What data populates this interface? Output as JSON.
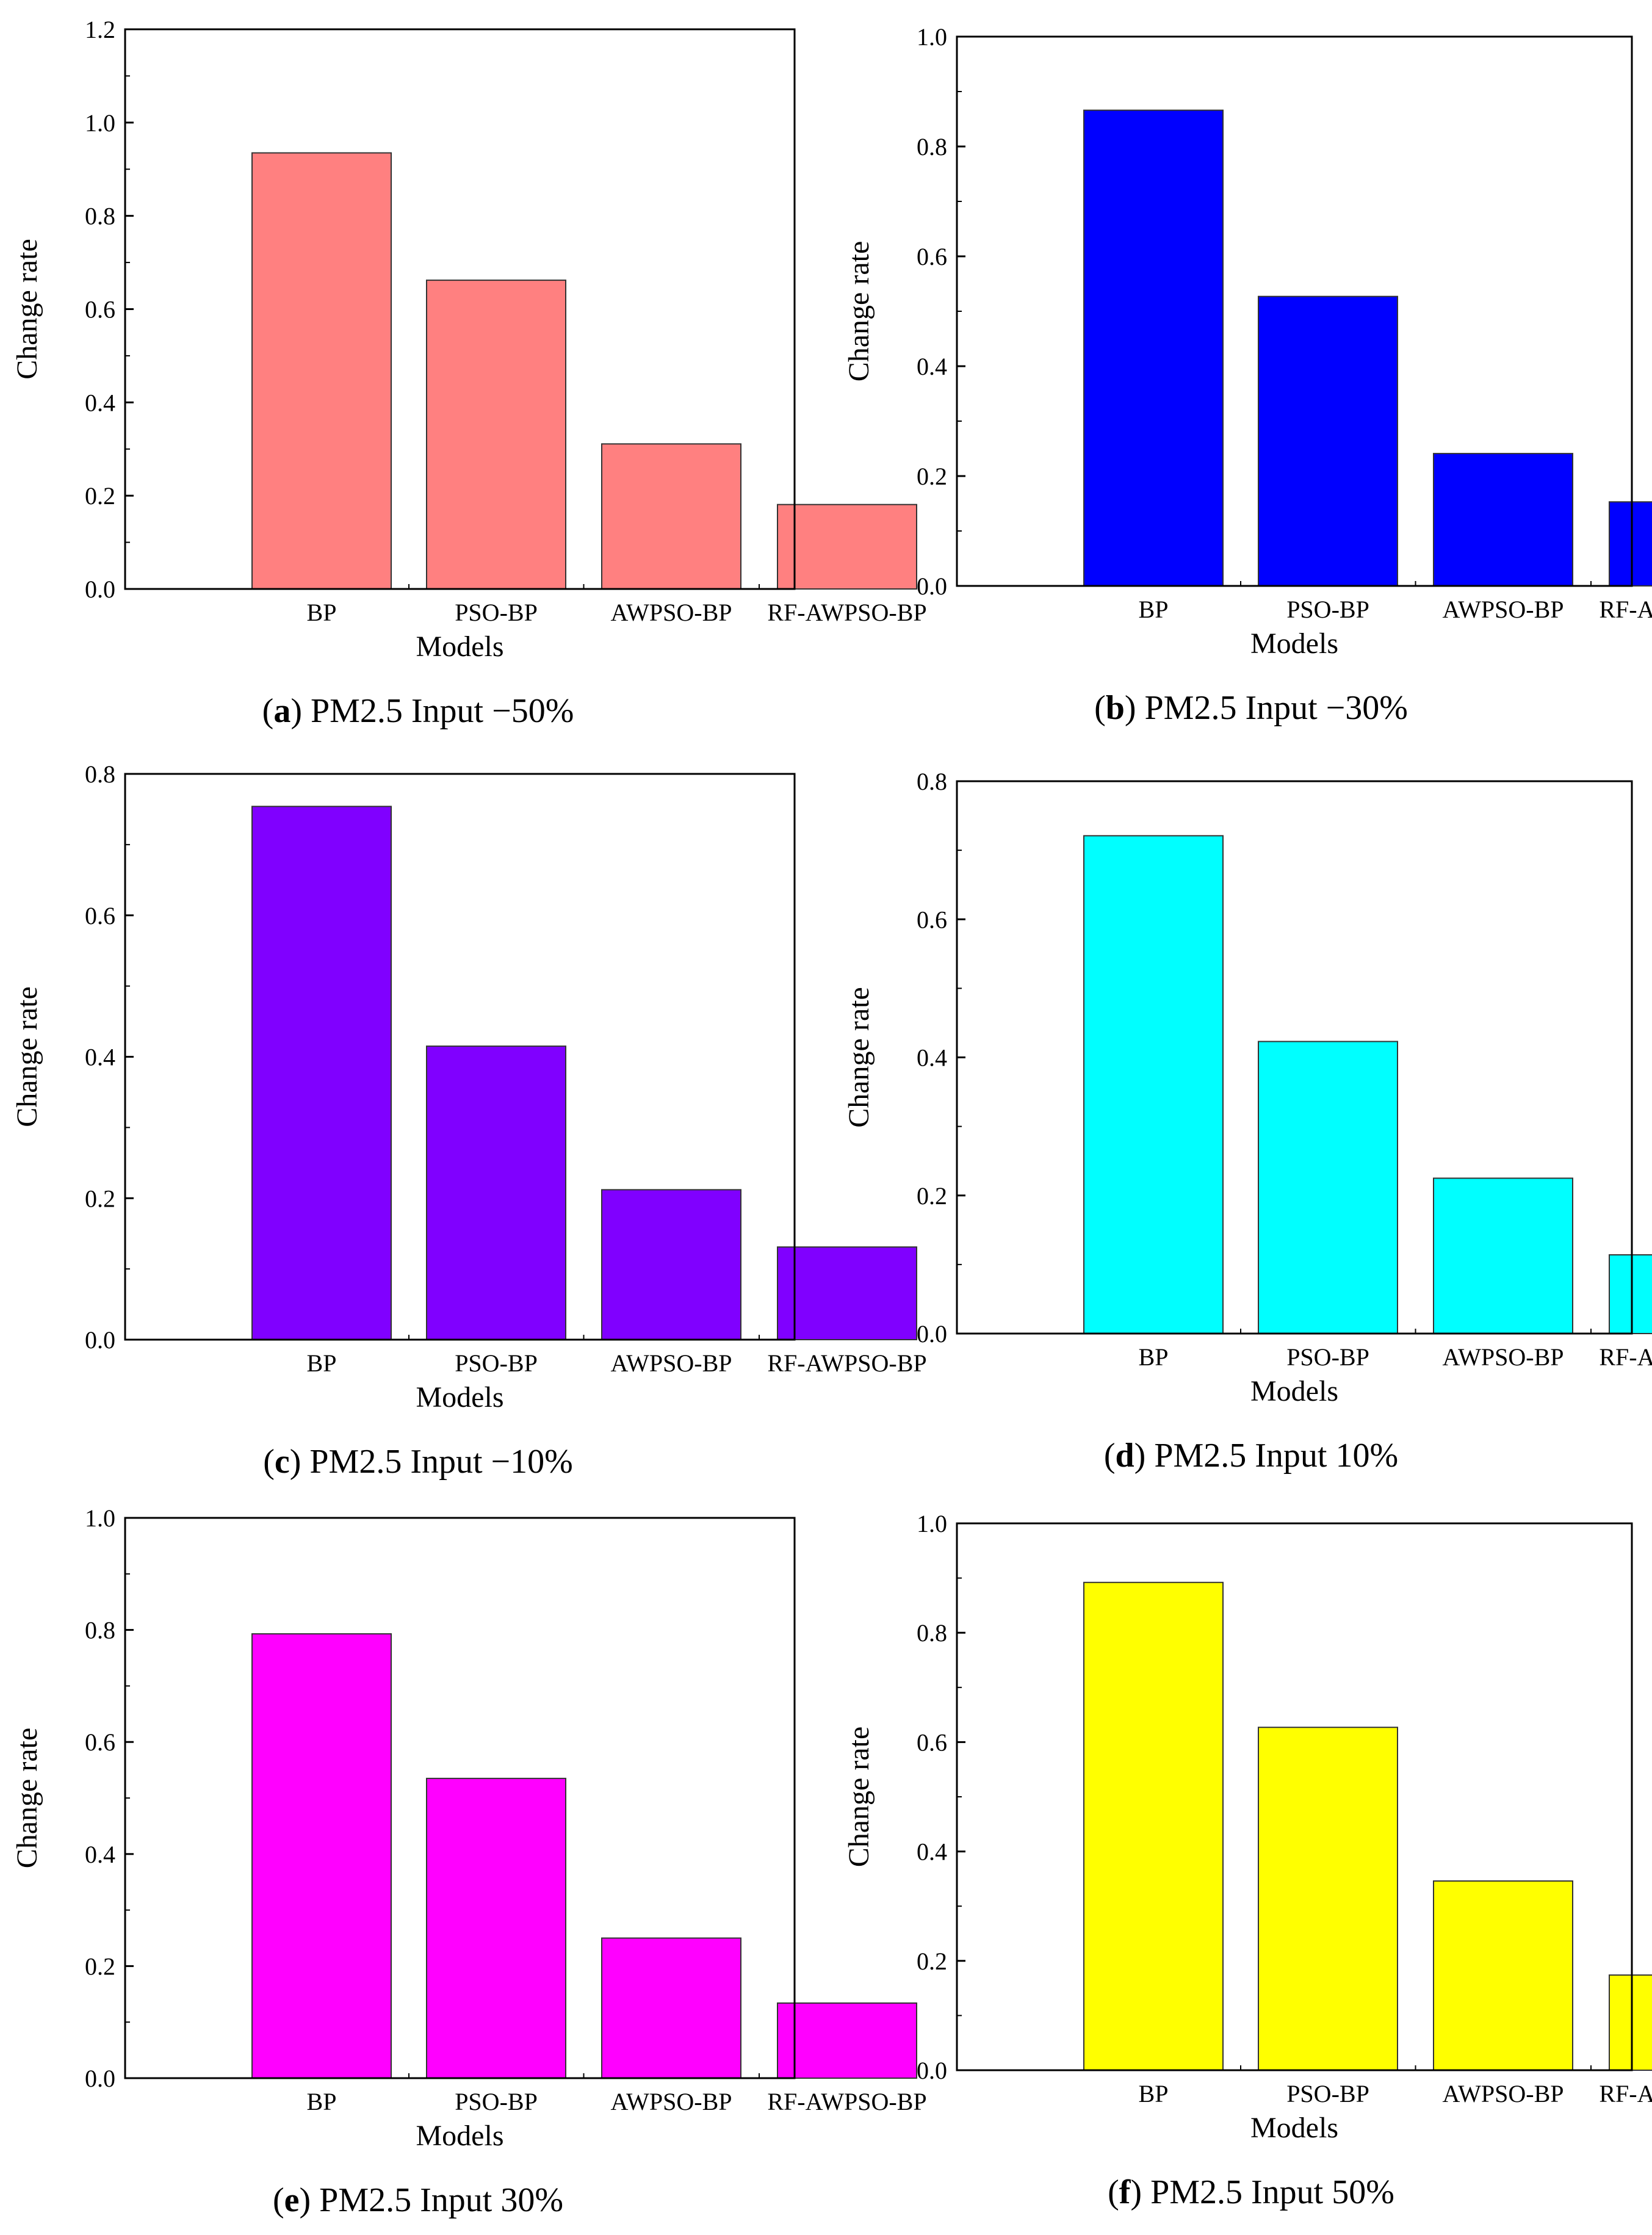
{
  "chart_data": [
    {
      "type": "bar",
      "panel": "a",
      "caption": {
        "letter": "a",
        "text": " PM2.5 Input −50%"
      },
      "categories": [
        "BP",
        "PSO-BP",
        "AWPSO-BP",
        "RF-AWPSO-BP"
      ],
      "values": [
        0.935,
        0.662,
        0.311,
        0.181
      ],
      "xlabel": "Models",
      "ylabel": "Change rate",
      "ylim": [
        0,
        1.2
      ],
      "yticks": [
        "0.0",
        "0.2",
        "0.4",
        "0.6",
        "0.8",
        "1.0",
        "1.2"
      ],
      "color": "#ff8080",
      "grid": false
    },
    {
      "type": "bar",
      "panel": "b",
      "caption": {
        "letter": "b",
        "text": " PM2.5 Input −30%"
      },
      "categories": [
        "BP",
        "PSO-BP",
        "AWPSO-BP",
        "RF-AWPSO-BP"
      ],
      "values": [
        0.866,
        0.527,
        0.241,
        0.153
      ],
      "xlabel": "Models",
      "ylabel": "Change rate",
      "ylim": [
        0,
        1.0
      ],
      "yticks": [
        "0.0",
        "0.2",
        "0.4",
        "0.6",
        "0.8",
        "1.0"
      ],
      "color": "#0000ff",
      "grid": false
    },
    {
      "type": "bar",
      "panel": "c",
      "caption": {
        "letter": "c",
        "text": " PM2.5 Input −10%"
      },
      "categories": [
        "BP",
        "PSO-BP",
        "AWPSO-BP",
        "RF-AWPSO-BP"
      ],
      "values": [
        0.754,
        0.415,
        0.212,
        0.131
      ],
      "xlabel": "Models",
      "ylabel": "Change rate",
      "ylim": [
        0,
        0.8
      ],
      "yticks": [
        "0.0",
        "0.2",
        "0.4",
        "0.6",
        "0.8"
      ],
      "color": "#8000ff",
      "grid": false
    },
    {
      "type": "bar",
      "panel": "d",
      "caption": {
        "letter": "d",
        "text": " PM2.5 Input 10%"
      },
      "categories": [
        "BP",
        "PSO-BP",
        "AWPSO-BP",
        "RF-AWPSO-BP"
      ],
      "values": [
        0.721,
        0.423,
        0.225,
        0.114
      ],
      "xlabel": "Models",
      "ylabel": "Change rate",
      "ylim": [
        0,
        0.8
      ],
      "yticks": [
        "0.0",
        "0.2",
        "0.4",
        "0.6",
        "0.8"
      ],
      "color": "#00ffff",
      "grid": false
    },
    {
      "type": "bar",
      "panel": "e",
      "caption": {
        "letter": "e",
        "text": " PM2.5 Input 30%"
      },
      "categories": [
        "BP",
        "PSO-BP",
        "AWPSO-BP",
        "RF-AWPSO-BP"
      ],
      "values": [
        0.793,
        0.535,
        0.25,
        0.134
      ],
      "xlabel": "Models",
      "ylabel": "Change rate",
      "ylim": [
        0,
        1.0
      ],
      "yticks": [
        "0.0",
        "0.2",
        "0.4",
        "0.6",
        "0.8",
        "1.0"
      ],
      "color": "#ff00ff",
      "grid": false
    },
    {
      "type": "bar",
      "panel": "f",
      "caption": {
        "letter": "f",
        "text": " PM2.5 Input 50%"
      },
      "categories": [
        "BP",
        "PSO-BP",
        "AWPSO-BP",
        "RF-AWPSO-BP"
      ],
      "values": [
        0.892,
        0.627,
        0.346,
        0.174
      ],
      "xlabel": "Models",
      "ylabel": "Change rate",
      "ylim": [
        0,
        1.0
      ],
      "yticks": [
        "0.0",
        "0.2",
        "0.4",
        "0.6",
        "0.8",
        "1.0"
      ],
      "color": "#ffff00",
      "grid": false
    }
  ]
}
